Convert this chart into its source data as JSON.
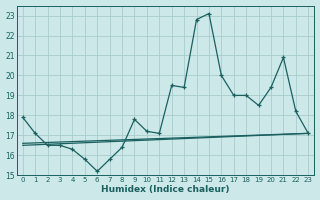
{
  "xlabel": "Humidex (Indice chaleur)",
  "xlim": [
    -0.5,
    23.5
  ],
  "ylim": [
    15,
    23.5
  ],
  "yticks": [
    15,
    16,
    17,
    18,
    19,
    20,
    21,
    22,
    23
  ],
  "xticks": [
    0,
    1,
    2,
    3,
    4,
    5,
    6,
    7,
    8,
    9,
    10,
    11,
    12,
    13,
    14,
    15,
    16,
    17,
    18,
    19,
    20,
    21,
    22,
    23
  ],
  "bg_color": "#cce8e8",
  "grid_color": "#aacccc",
  "line_color": "#1a6060",
  "line1_marker": {
    "x": [
      0,
      1,
      2,
      3,
      4,
      5,
      6,
      7,
      8,
      9,
      10,
      11,
      12,
      13,
      14,
      15,
      16,
      17,
      18,
      19,
      20,
      21,
      22,
      23
    ],
    "y": [
      17.9,
      17.1,
      16.5,
      16.5,
      16.3,
      15.8,
      15.2,
      15.8,
      16.4,
      17.8,
      17.2,
      17.1,
      19.5,
      19.4,
      22.8,
      23.1,
      20.0,
      19.0,
      19.0,
      18.5,
      19.4,
      20.9,
      18.2,
      17.1
    ]
  },
  "line2_trend": {
    "x": [
      0,
      23
    ],
    "y": [
      16.5,
      17.1
    ]
  },
  "line3_slope": {
    "x": [
      0,
      23
    ],
    "y": [
      16.6,
      17.1
    ]
  }
}
